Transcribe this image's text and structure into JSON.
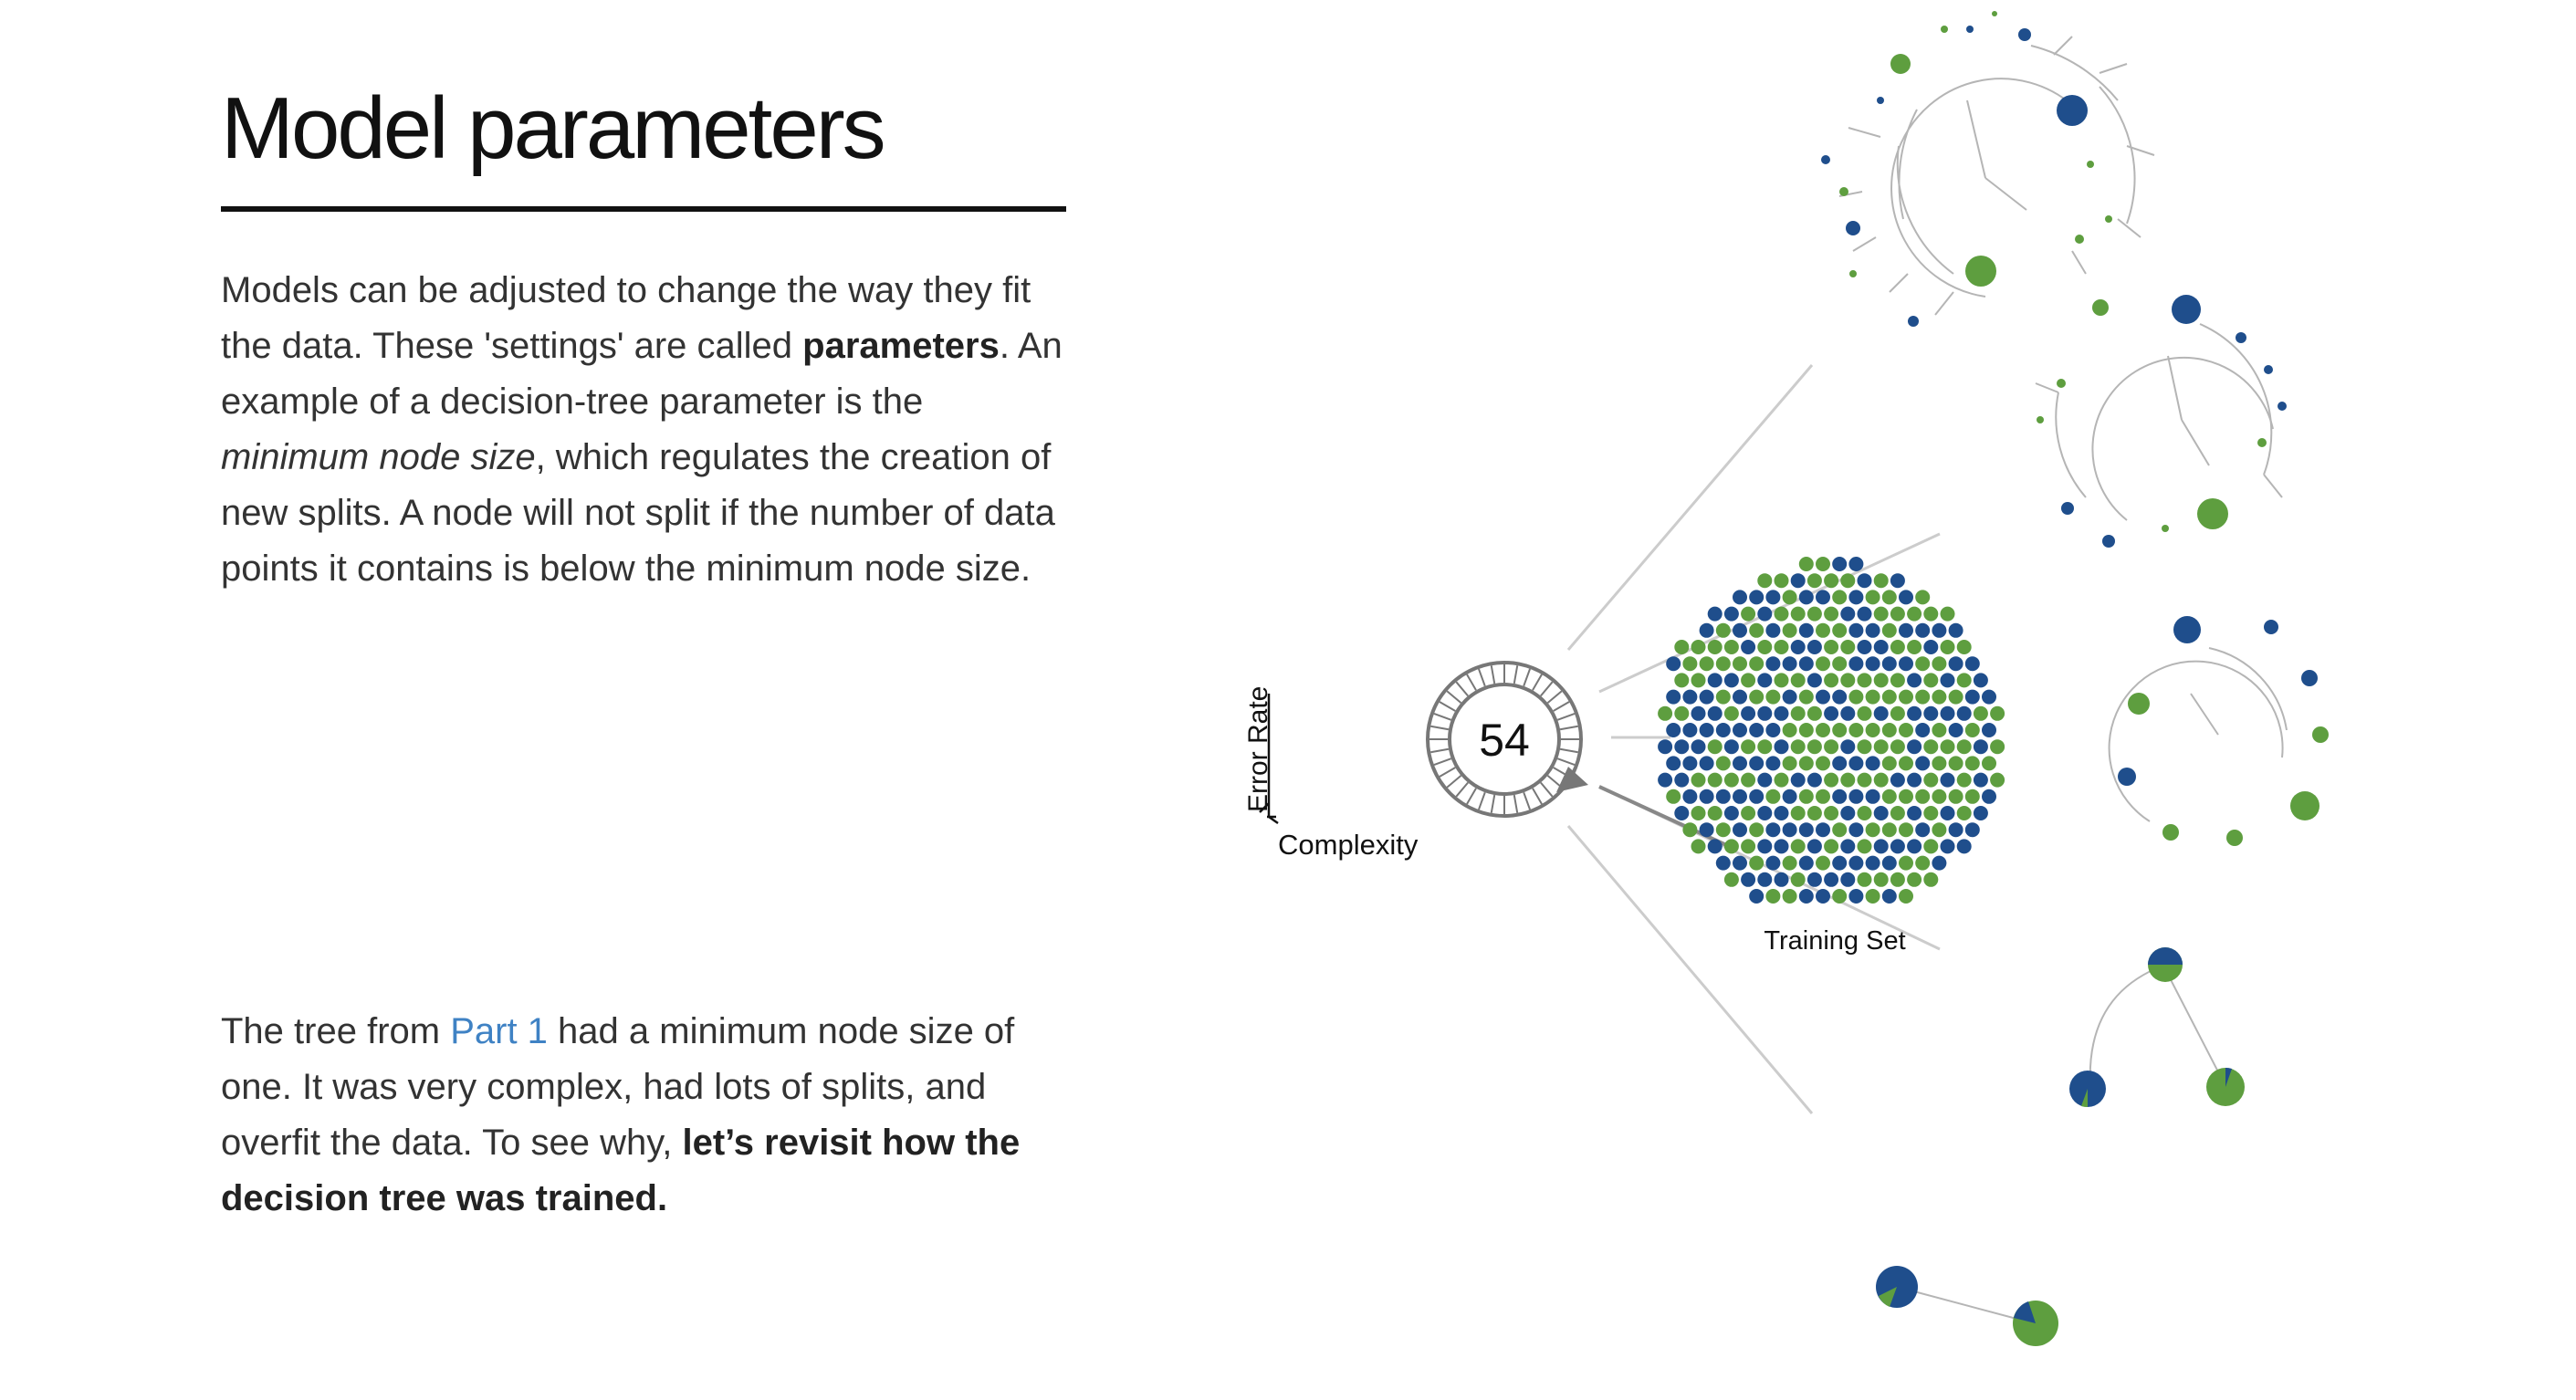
{
  "title": "Model parameters",
  "para1": {
    "s1": "Models can be adjusted to change the way they fit the data. These 'settings' are called ",
    "b1": "parameters",
    "s2": ". An example of a decision-tree parameter is the ",
    "i1": "minimum node size",
    "s3": ", which regulates the creation of new splits. A node will not split if the number of data points it contains is below the minimum node size."
  },
  "para2": {
    "s1": "The tree from ",
    "link": "Part 1",
    "s2": " had a minimum node size of one. It was very complex, had lots of splits, and overfit the data. To see why, ",
    "b1": "let’s revisit how the decision tree was trained."
  },
  "diagram": {
    "error_rate_label": "Error Rate",
    "complexity_label": "Complexity",
    "parameter_value": "54",
    "training_set_label": "Training Set",
    "colors": {
      "blue": "#1f4e8c",
      "green": "#5e9e3f",
      "line": "#c8c8c8",
      "dial": "#777777"
    }
  }
}
